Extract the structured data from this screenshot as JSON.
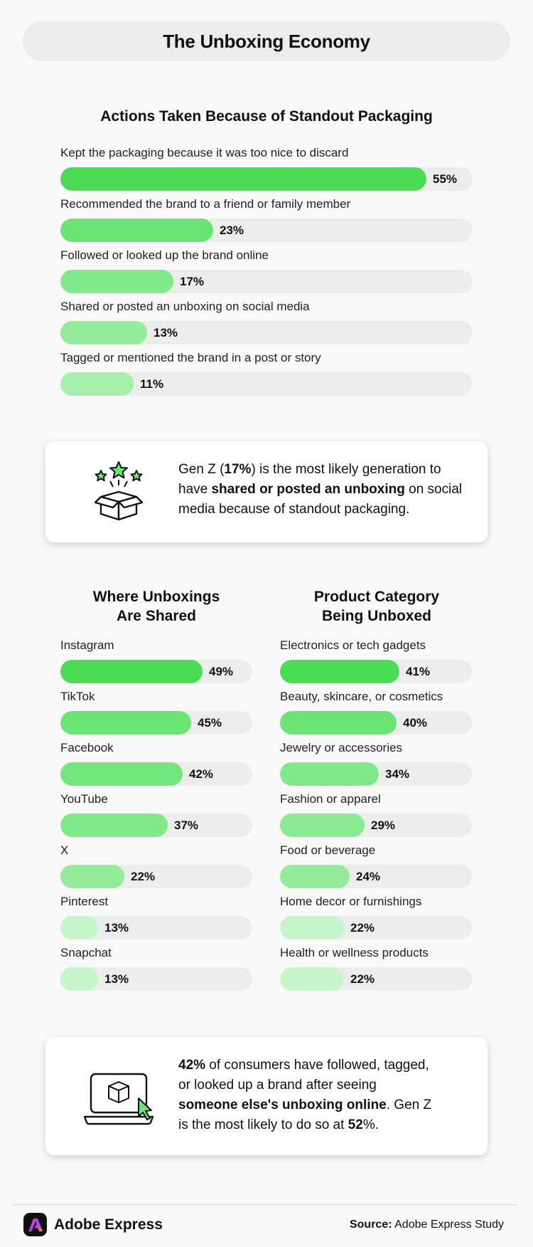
{
  "header": {
    "title": "The Unboxing Economy"
  },
  "palette": {
    "green_1": "#4cdb55",
    "green_2": "#6ae474",
    "green_3": "#80e989",
    "green_4": "#92ec9a",
    "green_5": "#a6f0aa",
    "green_6": "#c5f5c8",
    "track": "#ececec"
  },
  "chart_data": [
    {
      "type": "bar",
      "orientation": "horizontal",
      "title": "Actions Taken Because of Standout Packaging",
      "unit": "%",
      "categories": [
        "Kept the packaging because it was too nice to discard",
        "Recommended the brand to a friend or family member",
        "Followed or looked up the brand online",
        "Shared or posted an unboxing on social media",
        "Tagged or mentioned the brand in a post or story"
      ],
      "values": [
        55,
        23,
        17,
        13,
        11
      ],
      "value_labels": [
        "55%",
        "23%",
        "17%",
        "13%",
        "11%"
      ],
      "colors": [
        "#4cdb55",
        "#6ae474",
        "#80e989",
        "#92ec9a",
        "#a6f0aa"
      ],
      "xlim": [
        0,
        62
      ],
      "legend": "none",
      "grid": false
    },
    {
      "type": "bar",
      "orientation": "horizontal",
      "title": "Where Unboxings Are Shared",
      "unit": "%",
      "categories": [
        "Instagram",
        "TikTok",
        "Facebook",
        "YouTube",
        "X",
        "Pinterest",
        "Snapchat"
      ],
      "values": [
        49,
        45,
        42,
        37,
        22,
        13,
        13
      ],
      "value_labels": [
        "49%",
        "45%",
        "42%",
        "37%",
        "22%",
        "13%",
        "13%"
      ],
      "colors": [
        "#4cdb55",
        "#6ae474",
        "#74e67e",
        "#80e989",
        "#92ec9a",
        "#c5f5c8",
        "#c5f5c8"
      ],
      "xlim": [
        0,
        66
      ],
      "legend": "none",
      "grid": false
    },
    {
      "type": "bar",
      "orientation": "horizontal",
      "title": "Product Category Being Unboxed",
      "unit": "%",
      "categories": [
        "Electronics or tech gadgets",
        "Beauty, skincare, or cosmetics",
        "Jewelry or accessories",
        "Fashion or apparel",
        "Food or beverage",
        "Home decor or furnishings",
        "Health or wellness products"
      ],
      "values": [
        41,
        40,
        34,
        29,
        24,
        22,
        22
      ],
      "value_labels": [
        "41%",
        "40%",
        "34%",
        "29%",
        "24%",
        "22%",
        "22%"
      ],
      "colors": [
        "#4cdb55",
        "#6ae474",
        "#80e989",
        "#8aeb93",
        "#92ec9a",
        "#c5f5c8",
        "#c5f5c8"
      ],
      "xlim": [
        0,
        66
      ],
      "legend": "none",
      "grid": false
    }
  ],
  "callout_1": {
    "icon": "gift-box-stars-icon",
    "parts": [
      "Gen Z (",
      "17%",
      ") is the most likely generation to have ",
      "shared or posted an unboxing",
      " on social media because of standout packaging."
    ]
  },
  "callout_2": {
    "icon": "laptop-box-cursor-icon",
    "parts": [
      "42%",
      " of consumers have followed, tagged, or looked up a brand after seeing ",
      "someone else's unboxing online",
      ". Gen Z is the most likely to do so at ",
      "52",
      "%."
    ]
  },
  "footer": {
    "brand_icon": "adobe-logo-icon",
    "brand_name": "Adobe Express",
    "source_label": "Source:",
    "source_text": " Adobe Express Study"
  }
}
